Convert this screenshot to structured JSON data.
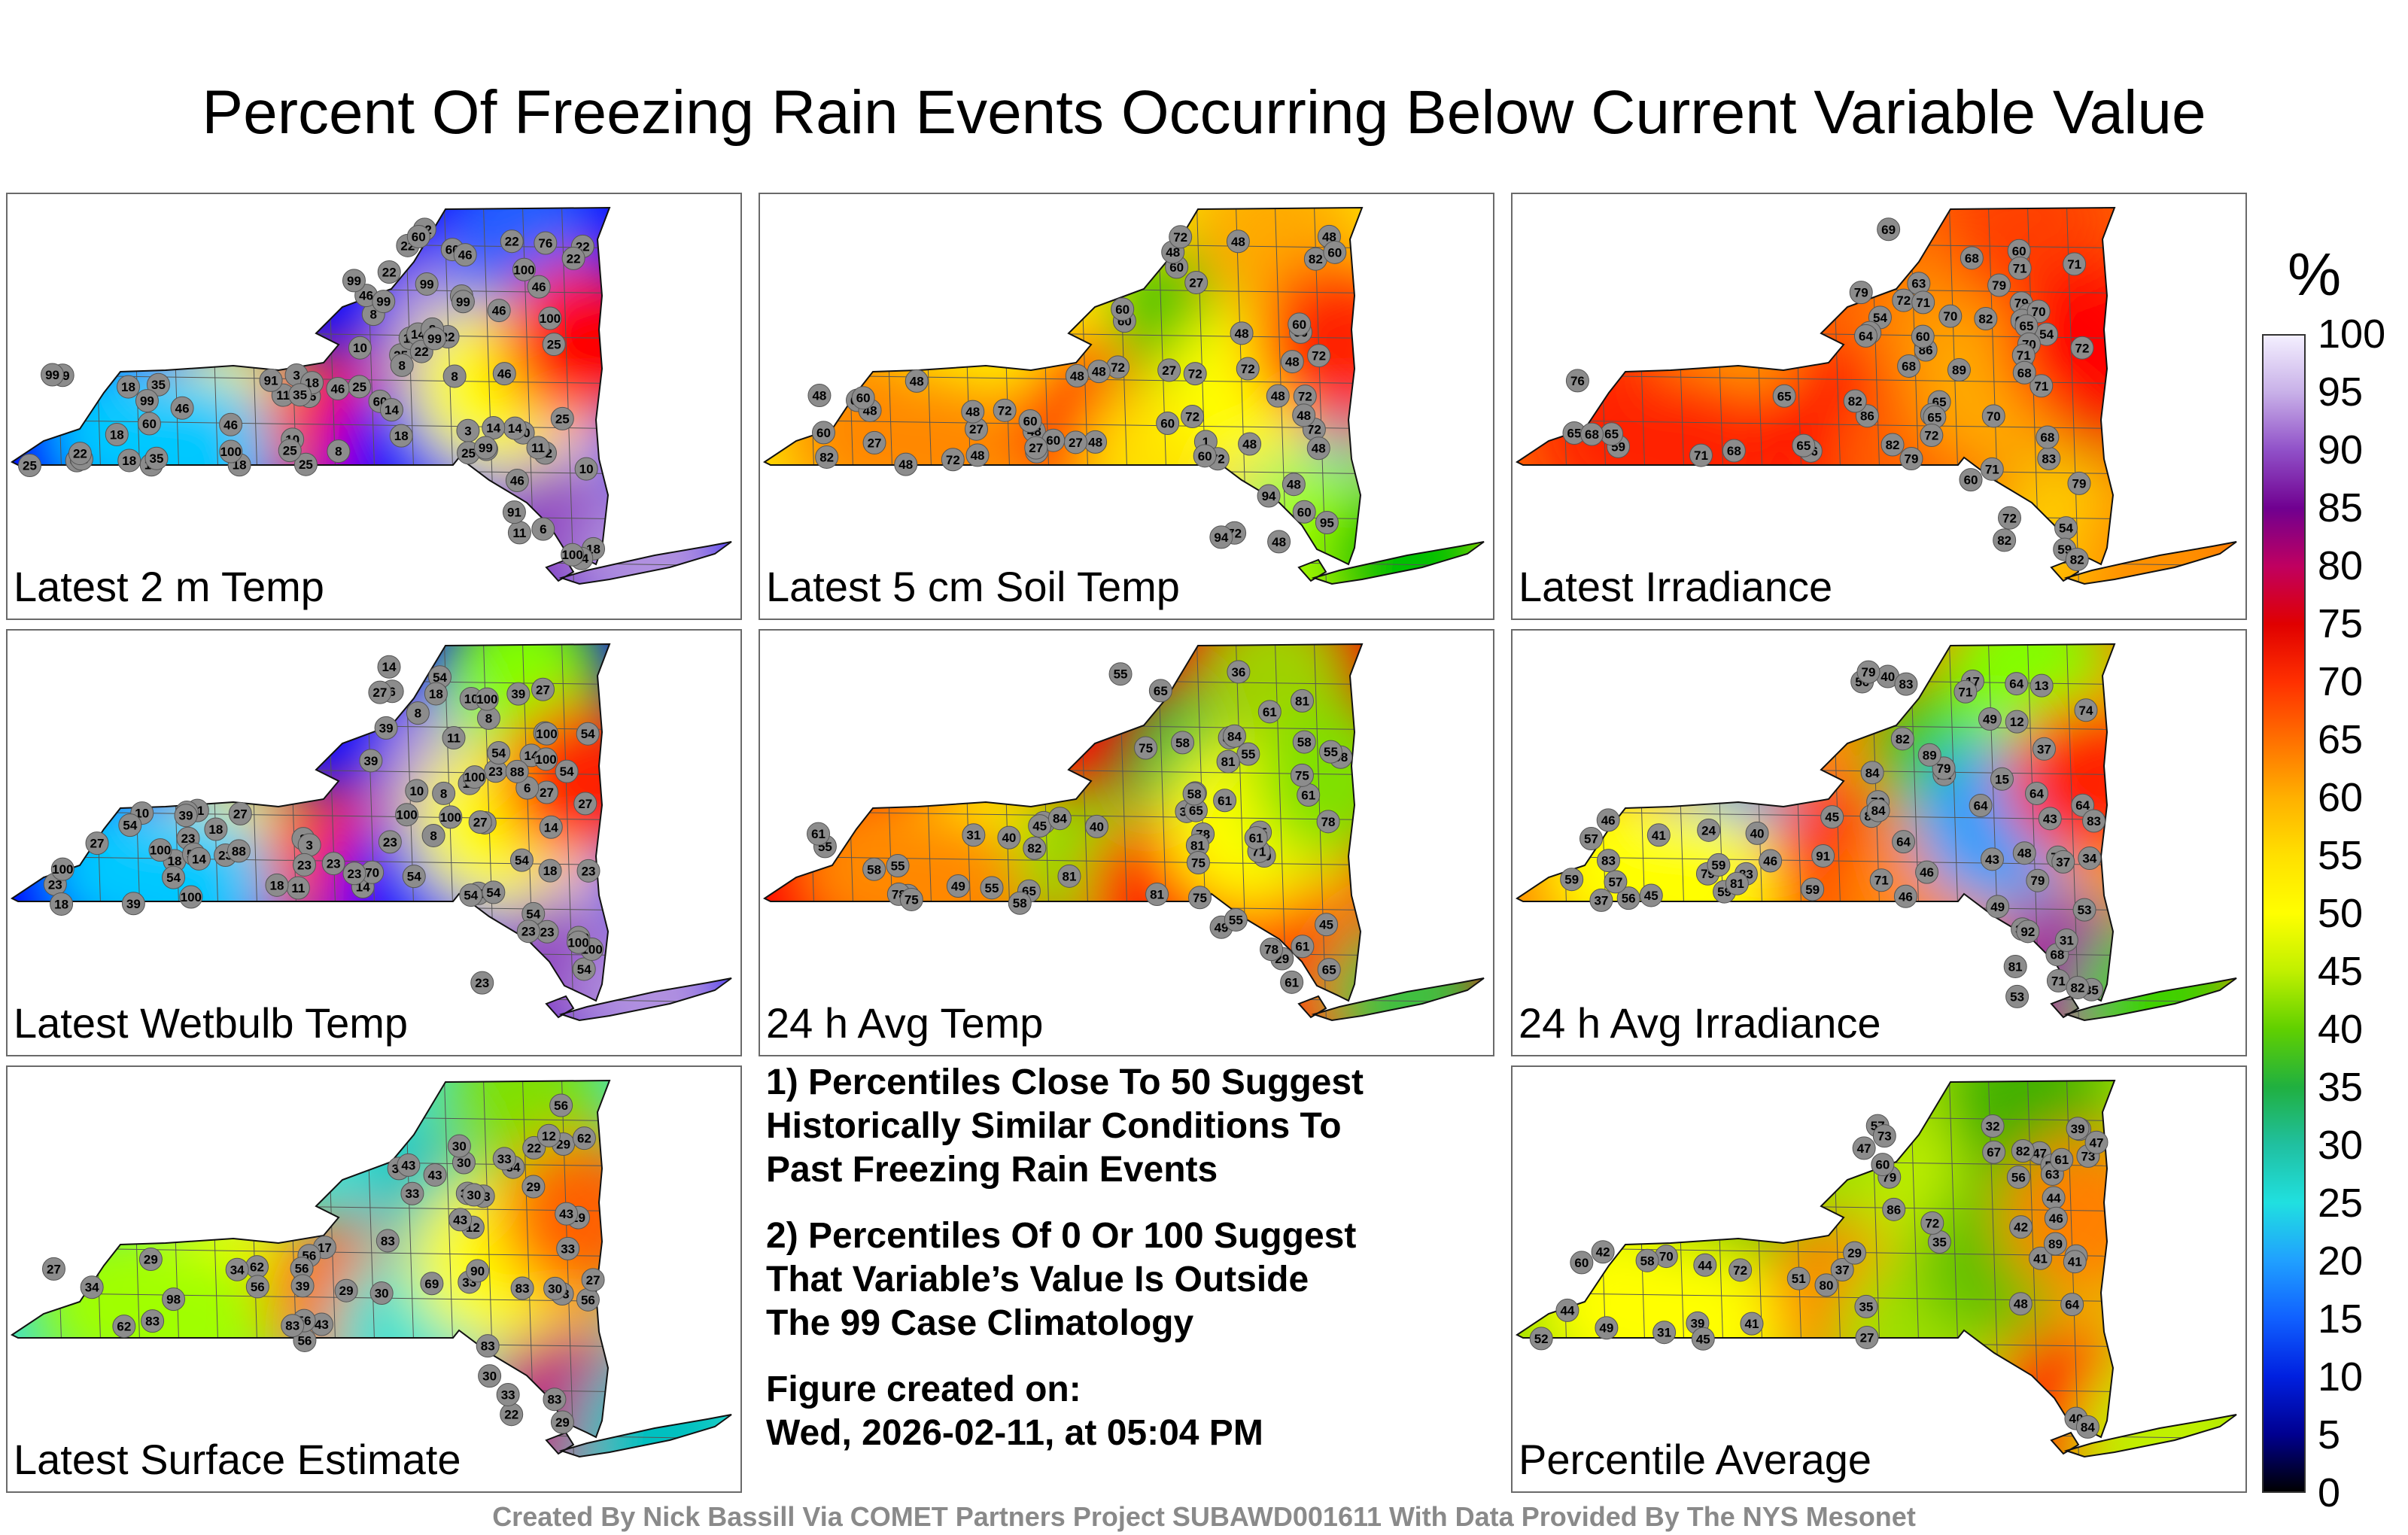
{
  "title": "Percent Of Freezing Rain Events Occurring Below Current Variable Value",
  "panels": [
    {
      "id": "latest-2m-temp",
      "label": "Latest 2 m Temp",
      "values": [
        11,
        8,
        8,
        11,
        10,
        3,
        3,
        22,
        18,
        14,
        25,
        8,
        22,
        22,
        76,
        25,
        14,
        10,
        8,
        8,
        6,
        22,
        46,
        60,
        46,
        18,
        18,
        10,
        10,
        22,
        91,
        25,
        46,
        60,
        46,
        46,
        60,
        25,
        46,
        22,
        46,
        22,
        60,
        25,
        14,
        11,
        25,
        35,
        22,
        18,
        22,
        10,
        14,
        10,
        8,
        22,
        25,
        46,
        18,
        18,
        46,
        22,
        99,
        11,
        18,
        46,
        35,
        25,
        14,
        46,
        99,
        99,
        35,
        99,
        91,
        99,
        60,
        99,
        99,
        99,
        100,
        100,
        100,
        100,
        99
      ],
      "colors": [
        "#0000ff",
        "#00c8ff",
        "#ffff00",
        "#ff0000",
        "#b090e0",
        "#f0e8ff",
        "#9040c0",
        "#2060ff"
      ]
    },
    {
      "id": "latest-5cm-soil",
      "label": "Latest 5 cm Soil Temp",
      "values": [
        60,
        60,
        27,
        72,
        72,
        48,
        60,
        94,
        95,
        48,
        1,
        60,
        72,
        82,
        72,
        72,
        48,
        72,
        82,
        48,
        48,
        60,
        72,
        72,
        72,
        60,
        48,
        60,
        27,
        27,
        48,
        48,
        48,
        27,
        48,
        60,
        48,
        48,
        48,
        72,
        60,
        48,
        60,
        27,
        27,
        48,
        48,
        48,
        60,
        72,
        60,
        60,
        72,
        60,
        60,
        48,
        48,
        94,
        48,
        48
      ],
      "colors": [
        "#ffe000",
        "#ff8800",
        "#ffff00",
        "#ff2000",
        "#00c000",
        "#0060ff",
        "#a0ff00",
        "#ffaa00"
      ]
    },
    {
      "id": "latest-irradiance",
      "label": "Latest Irradiance",
      "values": [
        65,
        79,
        60,
        54,
        69,
        72,
        83,
        59,
        86,
        70,
        71,
        72,
        86,
        63,
        69,
        54,
        71,
        54,
        79,
        59,
        89,
        68,
        86,
        79,
        79,
        82,
        65,
        60,
        65,
        68,
        68,
        65,
        79,
        71,
        79,
        65,
        68,
        70,
        76,
        65,
        65,
        64,
        82,
        60,
        65,
        70,
        71,
        82,
        79,
        71,
        71,
        82,
        72,
        70,
        68,
        72,
        68,
        71,
        82
      ],
      "colors": [
        "#ff6000",
        "#ff2000",
        "#ffaa00",
        "#ff0000",
        "#ff9000",
        "#d00000",
        "#ffcc00",
        "#ff4000"
      ]
    },
    {
      "id": "latest-wetbulb",
      "label": "Latest Wetbulb Temp",
      "values": [
        11,
        8,
        8,
        11,
        10,
        3,
        3,
        23,
        18,
        14,
        23,
        8,
        23,
        23,
        88,
        27,
        14,
        10,
        8,
        6,
        6,
        23,
        54,
        54,
        39,
        18,
        23,
        23,
        10,
        27,
        100,
        27,
        54,
        54,
        54,
        70,
        54,
        27,
        54,
        23,
        54,
        23,
        54,
        27,
        14,
        10,
        27,
        39,
        23,
        18,
        23,
        10,
        14,
        23,
        8,
        23,
        39,
        54,
        18,
        18,
        54,
        39,
        100,
        11,
        18,
        54,
        39,
        27,
        14,
        54,
        100,
        100,
        39,
        100,
        88,
        100,
        88,
        100,
        100,
        100,
        100,
        100,
        100
      ],
      "colors": [
        "#0000ff",
        "#00c8ff",
        "#ffff00",
        "#ff2000",
        "#b090e0",
        "#f0e8ff",
        "#9040c0",
        "#80ff00"
      ]
    },
    {
      "id": "24h-avg-temp",
      "label": "24 h Avg Temp",
      "values": [
        29,
        31,
        40,
        36,
        31,
        40,
        49,
        45,
        58,
        55,
        45,
        49,
        40,
        45,
        55,
        65,
        61,
        55,
        45,
        49,
        55,
        45,
        55,
        61,
        78,
        78,
        81,
        81,
        75,
        71,
        81,
        65,
        61,
        55,
        61,
        58,
        75,
        65,
        58,
        75,
        78,
        65,
        61,
        61,
        55,
        78,
        75,
        61,
        58,
        58,
        75,
        58,
        81,
        84,
        82,
        81,
        84,
        84
      ],
      "colors": [
        "#ff0000",
        "#ff8800",
        "#ffff00",
        "#80e000",
        "#40c040",
        "#ffcc00",
        "#ff4000",
        "#a0d000"
      ]
    },
    {
      "id": "24h-avg-irradiance",
      "label": "24 h Avg Irradiance",
      "values": [
        84,
        74,
        83,
        59,
        56,
        24,
        64,
        15,
        43,
        79,
        45,
        79,
        12,
        13,
        84,
        64,
        35,
        35,
        81,
        74,
        34,
        21,
        17,
        57,
        79,
        46,
        56,
        53,
        49,
        40,
        37,
        45,
        48,
        68,
        46,
        84,
        37,
        79,
        40,
        71,
        82,
        79,
        57,
        49,
        53,
        43,
        71,
        64,
        59,
        83,
        46,
        71,
        59,
        59,
        83,
        64,
        41,
        31,
        64,
        37,
        46,
        89,
        81,
        92,
        91,
        83,
        82
      ],
      "colors": [
        "#ff8800",
        "#ffff00",
        "#00a0ff",
        "#ff2000",
        "#40d000",
        "#ffcc00",
        "#a000a0",
        "#80ff00"
      ]
    },
    {
      "id": "latest-surface-estimate",
      "label": "Latest Surface Estimate",
      "values": [
        30,
        22,
        29,
        12,
        17,
        30,
        29,
        12,
        22,
        33,
        30,
        29,
        62,
        56,
        43,
        43,
        56,
        56,
        62,
        56,
        33,
        34,
        30,
        29,
        29,
        43,
        34,
        56,
        43,
        33,
        56,
        83,
        27,
        27,
        29,
        34,
        39,
        83,
        30,
        33,
        34,
        30,
        43,
        33,
        30,
        33,
        43,
        69,
        62,
        56,
        83,
        90,
        83,
        98,
        83,
        83
      ],
      "colors": [
        "#40e0d0",
        "#a0ff00",
        "#ffff00",
        "#ff6000",
        "#00c0c0",
        "#ffcc00",
        "#c00080",
        "#80e000"
      ]
    },
    {
      "id": "percentile-average",
      "label": "Percentile Average",
      "values": [
        41,
        40,
        39,
        35,
        37,
        31,
        42,
        35,
        39,
        41,
        47,
        49,
        44,
        52,
        29,
        32,
        44,
        56,
        45,
        70,
        63,
        60,
        67,
        58,
        51,
        48,
        41,
        42,
        47,
        51,
        73,
        56,
        57,
        73,
        64,
        72,
        79,
        72,
        61,
        86,
        80,
        89,
        82,
        84,
        44,
        46,
        39,
        27,
        60,
        47
      ],
      "colors": [
        "#a0e000",
        "#ffff00",
        "#60c000",
        "#ff8000",
        "#c0f000",
        "#ffcc00",
        "#ff0000",
        "#40b000"
      ]
    }
  ],
  "notes": {
    "note1": [
      "1) Percentiles Close To 50 Suggest",
      "Historically Similar Conditions To",
      "Past Freezing Rain Events"
    ],
    "note2": [
      "2) Percentiles Of 0 Or 100 Suggest",
      "That Variable’s Value Is Outside",
      "The 99 Case Climatology"
    ],
    "created_label": "Figure created on:",
    "created_value": "Wed, 2026-02-11, at 05:04 PM"
  },
  "colorbar": {
    "unit": "%",
    "ticks": [
      "100",
      "95",
      "90",
      "85",
      "80",
      "75",
      "70",
      "65",
      "60",
      "55",
      "50",
      "45",
      "40",
      "35",
      "30",
      "25",
      "20",
      "15",
      "10",
      "5",
      "0"
    ],
    "stops": [
      "#f4f0ff",
      "#c8b0e8",
      "#9050c8",
      "#700090",
      "#c00060",
      "#e00000",
      "#ff3000",
      "#ff7000",
      "#ffb000",
      "#ffe000",
      "#ffff00",
      "#c0f000",
      "#60d000",
      "#20b040",
      "#20c0a0",
      "#20e0e0",
      "#20a0ff",
      "#1060ff",
      "#0020e0",
      "#000090",
      "#000000"
    ]
  },
  "credit": "Created By Nick Bassill Via COMET Partners Project SUBAWD001611 With Data Provided By The NYS Mesonet"
}
